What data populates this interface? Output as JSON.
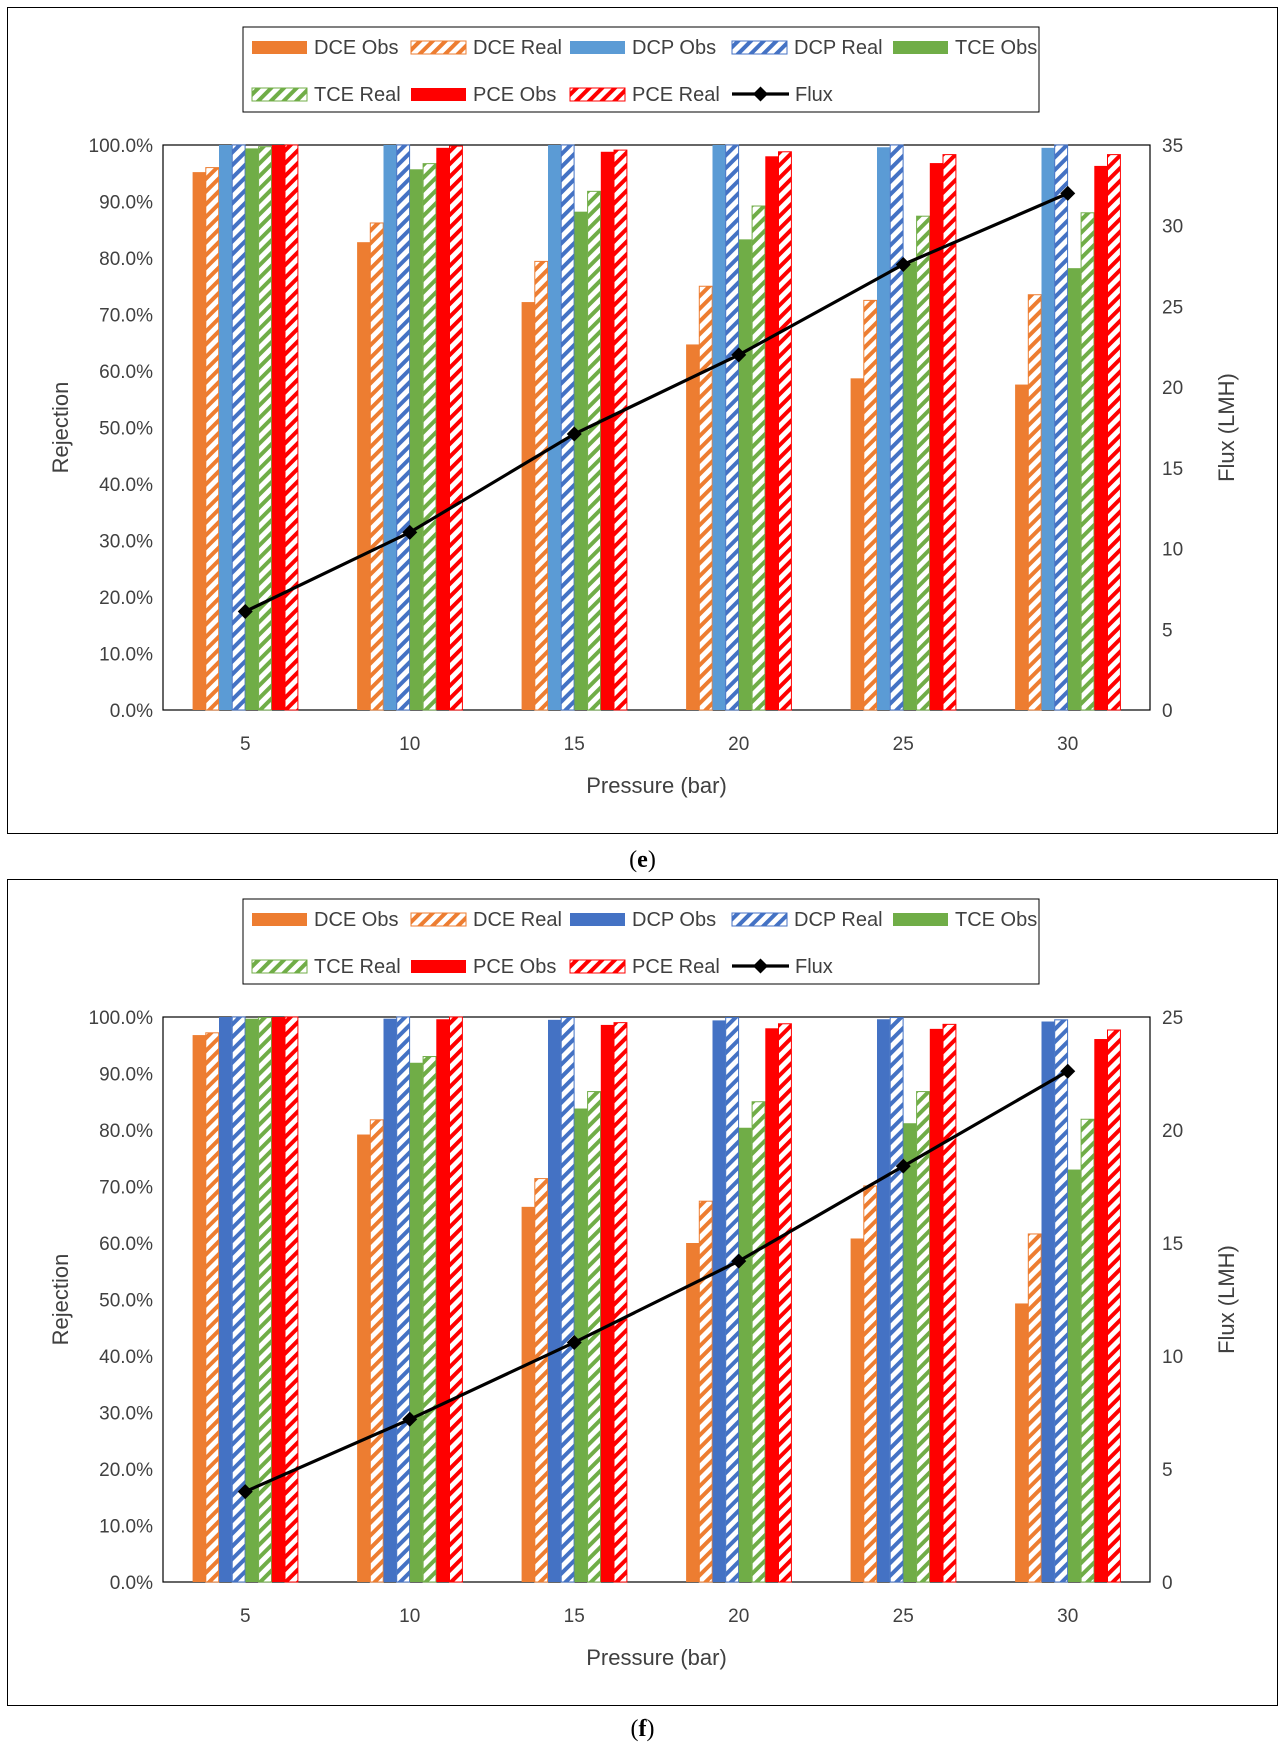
{
  "colors": {
    "dce": "#ED7D31",
    "dcp_e": "#5B9BD5",
    "dcp_f": "#4472C4",
    "tce": "#70AD47",
    "pce": "#FF0000",
    "flux": "#000000"
  },
  "chart_data": [
    {
      "panel": "e",
      "type": "bar",
      "title": "",
      "xlabel": "Pressure (bar)",
      "ylabel": "Rejection",
      "y2label": "Flux (LMH)",
      "categories": [
        "5",
        "10",
        "15",
        "20",
        "25",
        "30"
      ],
      "ylim": [
        0,
        100
      ],
      "y2lim": [
        0,
        35
      ],
      "yticks": [
        "0.0%",
        "10.0%",
        "20.0%",
        "30.0%",
        "40.0%",
        "50.0%",
        "60.0%",
        "70.0%",
        "80.0%",
        "90.0%",
        "100.0%"
      ],
      "y2ticks": [
        "0",
        "5",
        "10",
        "15",
        "20",
        "25",
        "30",
        "35"
      ],
      "legend_position": "top",
      "series": [
        {
          "name": "DCE Obs",
          "style": "solid",
          "color_key": "dce",
          "values": [
            95.2,
            82.8,
            72.2,
            64.7,
            58.7,
            57.6
          ]
        },
        {
          "name": "DCE Real",
          "style": "hatched",
          "color_key": "dce",
          "values": [
            96.0,
            86.2,
            79.4,
            75.0,
            72.5,
            73.5
          ]
        },
        {
          "name": "DCP Obs",
          "style": "solid",
          "color_key": "dcp_e",
          "values": [
            100.0,
            100.0,
            100.0,
            100.0,
            99.6,
            99.5
          ]
        },
        {
          "name": "DCP Real",
          "style": "hatched",
          "color_key": "dcp_f",
          "values": [
            100.0,
            100.0,
            100.0,
            100.0,
            100.0,
            100.0
          ]
        },
        {
          "name": "TCE Obs",
          "style": "solid",
          "color_key": "tce",
          "values": [
            99.4,
            95.7,
            88.2,
            83.3,
            79.4,
            78.2
          ]
        },
        {
          "name": "TCE Real",
          "style": "hatched",
          "color_key": "tce",
          "values": [
            99.7,
            96.7,
            91.8,
            89.2,
            87.4,
            88.0
          ]
        },
        {
          "name": "PCE Obs",
          "style": "solid",
          "color_key": "pce",
          "values": [
            100.0,
            99.5,
            98.8,
            98.0,
            96.8,
            96.3
          ]
        },
        {
          "name": "PCE Real",
          "style": "hatched",
          "color_key": "pce",
          "values": [
            100.0,
            99.8,
            99.1,
            98.8,
            98.3,
            98.3
          ]
        }
      ],
      "line": {
        "name": "Flux",
        "axis": "right",
        "values": [
          6.1,
          11.0,
          17.1,
          22.0,
          27.6,
          32.0
        ]
      }
    },
    {
      "panel": "f",
      "type": "bar",
      "title": "",
      "xlabel": "Pressure (bar)",
      "ylabel": "Rejection",
      "y2label": "Flux (LMH)",
      "categories": [
        "5",
        "10",
        "15",
        "20",
        "25",
        "30"
      ],
      "ylim": [
        0,
        100
      ],
      "y2lim": [
        0,
        25
      ],
      "yticks": [
        "0.0%",
        "10.0%",
        "20.0%",
        "30.0%",
        "40.0%",
        "50.0%",
        "60.0%",
        "70.0%",
        "80.0%",
        "90.0%",
        "100.0%"
      ],
      "y2ticks": [
        "0",
        "5",
        "10",
        "15",
        "20",
        "25"
      ],
      "legend_position": "top",
      "series": [
        {
          "name": "DCE Obs",
          "style": "solid",
          "color_key": "dce",
          "values": [
            96.8,
            79.2,
            66.4,
            60.0,
            60.8,
            49.3
          ]
        },
        {
          "name": "DCE Real",
          "style": "hatched",
          "color_key": "dce",
          "values": [
            97.2,
            81.8,
            71.4,
            67.4,
            70.1,
            61.6
          ]
        },
        {
          "name": "DCP Obs",
          "style": "solid",
          "color_key": "dcp_f",
          "values": [
            100.0,
            99.7,
            99.5,
            99.4,
            99.6,
            99.2
          ]
        },
        {
          "name": "DCP Real",
          "style": "hatched",
          "color_key": "dcp_f",
          "values": [
            100.0,
            100.0,
            99.9,
            99.9,
            99.9,
            99.5
          ]
        },
        {
          "name": "TCE Obs",
          "style": "solid",
          "color_key": "tce",
          "values": [
            99.7,
            91.9,
            83.8,
            80.4,
            81.2,
            73.0
          ]
        },
        {
          "name": "TCE Real",
          "style": "hatched",
          "color_key": "tce",
          "values": [
            99.9,
            93.0,
            86.8,
            85.0,
            86.8,
            81.9
          ]
        },
        {
          "name": "PCE Obs",
          "style": "solid",
          "color_key": "pce",
          "values": [
            100.0,
            99.6,
            98.6,
            98.0,
            97.9,
            96.1
          ]
        },
        {
          "name": "PCE Real",
          "style": "hatched",
          "color_key": "pce",
          "values": [
            100.0,
            100.0,
            99.0,
            98.8,
            98.7,
            97.7
          ]
        }
      ],
      "line": {
        "name": "Flux",
        "axis": "right",
        "values": [
          4.0,
          7.2,
          10.6,
          14.2,
          18.4,
          22.6
        ]
      }
    }
  ],
  "captions": {
    "e_open": "(",
    "e_letter": "e",
    "e_close": ")",
    "f_open": "(",
    "f_letter": "f",
    "f_close": ")"
  }
}
